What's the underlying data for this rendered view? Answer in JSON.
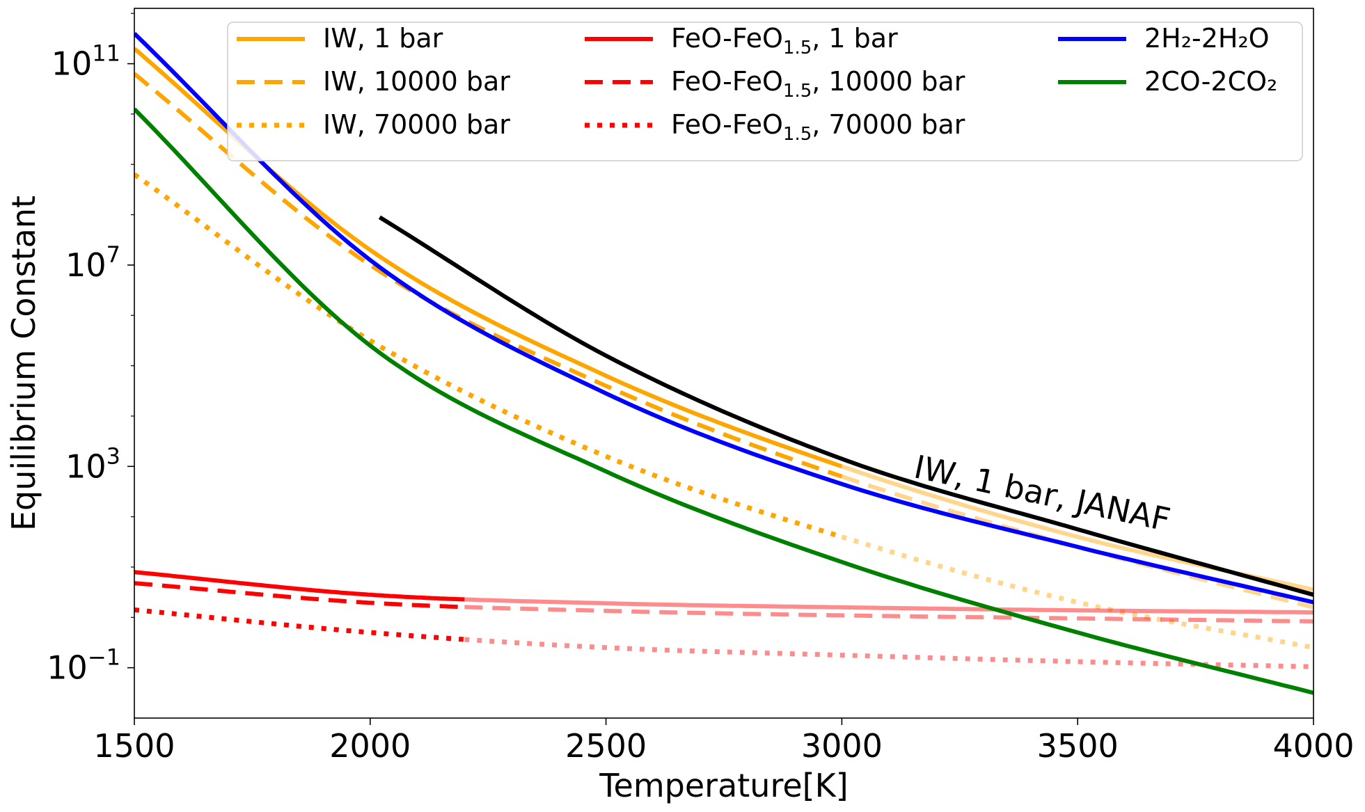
{
  "chart_data": {
    "type": "line",
    "xlabel": "Temperature[K]",
    "ylabel": "Equilibrium Constant",
    "xscale": "linear",
    "yscale": "log",
    "xlim": [
      1500,
      4000
    ],
    "ylim_log10": [
      -2,
      12.1
    ],
    "xticks": [
      1500,
      2000,
      2500,
      3000,
      3500,
      4000
    ],
    "xtick_labels": [
      "1500",
      "2000",
      "2500",
      "3000",
      "3500",
      "4000"
    ],
    "yticks_log10": [
      -1,
      3,
      7,
      11
    ],
    "ytick_labels": [
      {
        "base": "10",
        "exp": "−1"
      },
      {
        "base": "10",
        "exp": "3"
      },
      {
        "base": "10",
        "exp": "7"
      },
      {
        "base": "10",
        "exp": "11"
      }
    ],
    "legend_position": "top",
    "series": [
      {
        "id": "iw-1",
        "label": "IW, 1 bar",
        "color": "#ffa500",
        "style": "solid",
        "fade_after": 3000,
        "log10_values": [
          [
            1500,
            11.3
          ],
          [
            2000,
            7.3
          ],
          [
            2500,
            4.8
          ],
          [
            3000,
            3.0
          ],
          [
            3500,
            1.6
          ],
          [
            4000,
            0.55
          ]
        ]
      },
      {
        "id": "iw-1e4",
        "label": "IW, 10000 bar",
        "color": "#ffa500",
        "style": "dashed",
        "fade_after": 3000,
        "log10_values": [
          [
            1500,
            10.8
          ],
          [
            2000,
            7.0
          ],
          [
            2500,
            4.6
          ],
          [
            3000,
            2.8
          ],
          [
            3500,
            1.4
          ],
          [
            4000,
            0.2
          ]
        ]
      },
      {
        "id": "iw-7e4",
        "label": "IW, 70000 bar",
        "color": "#ffa500",
        "style": "dotted",
        "fade_after": 3000,
        "log10_values": [
          [
            1500,
            8.8
          ],
          [
            2000,
            5.5
          ],
          [
            2500,
            3.2
          ],
          [
            3000,
            1.6
          ],
          [
            3500,
            0.3
          ],
          [
            4000,
            -0.6
          ]
        ]
      },
      {
        "id": "feo-1",
        "label": "FeO-FeO₁.₅, 1 bar",
        "label_base": "FeO-FeO",
        "label_sub": "1.5",
        "label_tail": ", 1 bar",
        "color": "#ff0000",
        "style": "solid",
        "fade_after": 2200,
        "log10_values": [
          [
            1500,
            0.9
          ],
          [
            2000,
            0.45
          ],
          [
            2500,
            0.28
          ],
          [
            3000,
            0.2
          ],
          [
            3500,
            0.14
          ],
          [
            4000,
            0.1
          ]
        ]
      },
      {
        "id": "feo-1e4",
        "label": "FeO-FeO₁.₅, 10000 bar",
        "label_base": "FeO-FeO",
        "label_sub": "1.5",
        "label_tail": ", 10000 bar",
        "color": "#ff0000",
        "style": "dashed",
        "fade_after": 2200,
        "log10_values": [
          [
            1500,
            0.68
          ],
          [
            2000,
            0.29
          ],
          [
            2500,
            0.13
          ],
          [
            3000,
            0.04
          ],
          [
            3500,
            -0.02
          ],
          [
            4000,
            -0.08
          ]
        ]
      },
      {
        "id": "feo-7e4",
        "label": "FeO-FeO₁.₅, 70000 bar",
        "label_base": "FeO-FeO",
        "label_sub": "1.5",
        "label_tail": ", 70000 bar",
        "color": "#ff0000",
        "style": "dotted",
        "fade_after": 2200,
        "log10_values": [
          [
            1500,
            0.15
          ],
          [
            2000,
            -0.3
          ],
          [
            2500,
            -0.6
          ],
          [
            3000,
            -0.75
          ],
          [
            3500,
            -0.88
          ],
          [
            4000,
            -0.98
          ]
        ]
      },
      {
        "id": "h2-h2o",
        "label": "2H₂-2H₂O",
        "color": "#0000ff",
        "style": "solid",
        "fade_after": null,
        "log10_values": [
          [
            1500,
            11.6
          ],
          [
            2000,
            7.1
          ],
          [
            2500,
            4.45
          ],
          [
            3000,
            2.65
          ],
          [
            3500,
            1.4
          ],
          [
            4000,
            0.3
          ]
        ]
      },
      {
        "id": "co-co2",
        "label": "2CO-2CO₂",
        "color": "#008000",
        "style": "solid",
        "fade_after": null,
        "log10_values": [
          [
            1500,
            10.1
          ],
          [
            2000,
            5.4
          ],
          [
            2500,
            2.9
          ],
          [
            3000,
            1.1
          ],
          [
            3500,
            -0.3
          ],
          [
            4000,
            -1.5
          ]
        ]
      },
      {
        "id": "iw-janaf",
        "label": "IW, 1 bar, JANAF",
        "color": "#000000",
        "style": "solid",
        "fade_after": null,
        "in_legend": false,
        "log10_values": [
          [
            2020,
            7.95
          ],
          [
            2500,
            5.2
          ],
          [
            3000,
            3.15
          ],
          [
            3500,
            1.75
          ],
          [
            4000,
            0.45
          ]
        ]
      }
    ],
    "annotations": [
      {
        "text": "IW, 1 bar, JANAF",
        "x": 3420,
        "log10_y": 2.25,
        "rotation_deg": 12
      }
    ]
  }
}
